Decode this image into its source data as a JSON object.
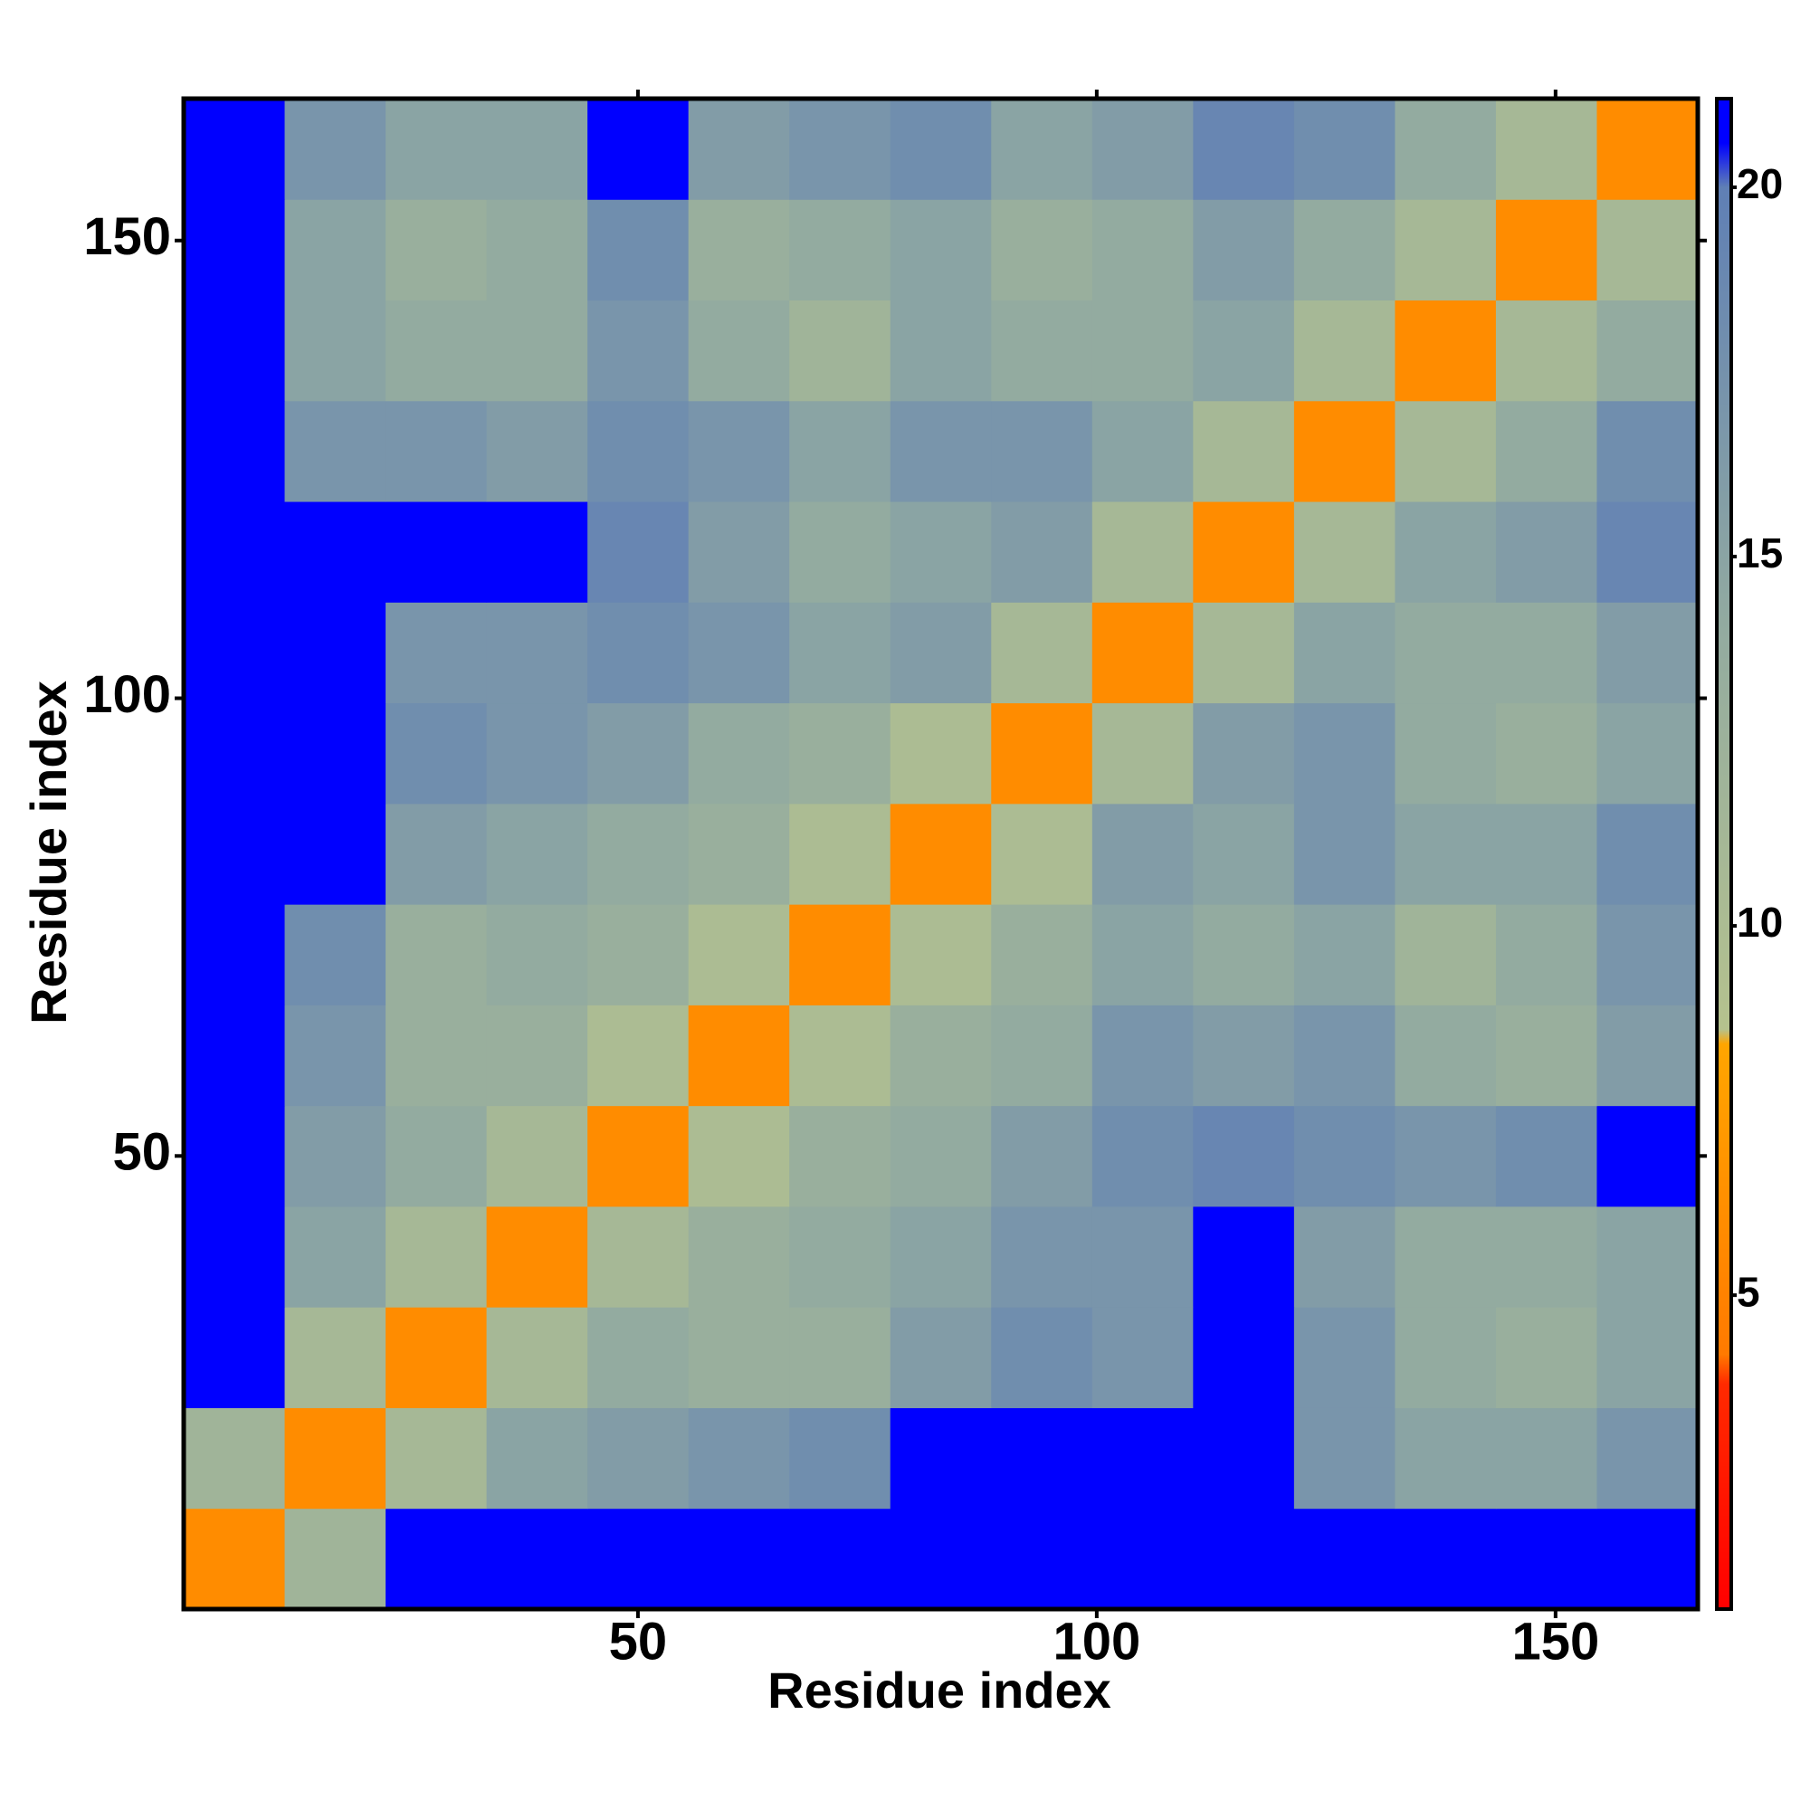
{
  "chart_data": {
    "type": "heatmap",
    "x_label": "Residue index",
    "y_label": "Residue index",
    "xbins": [
      0.5,
      11.5,
      22.5,
      33.5,
      44.5,
      55.5,
      66.5,
      77.5,
      88.5,
      99.5,
      110.5,
      121.5,
      132.5,
      143.5,
      154.5,
      165.5
    ],
    "ybins": [
      0.5,
      11.5,
      22.5,
      33.5,
      44.5,
      55.5,
      66.5,
      77.5,
      88.5,
      99.5,
      110.5,
      121.5,
      132.5,
      143.5,
      154.5,
      165.5
    ],
    "xlim": [
      0.5,
      165.5
    ],
    "ylim": [
      0.5,
      165.5
    ],
    "xticks": [
      50,
      100,
      150
    ],
    "yticks": [
      50,
      100,
      150
    ],
    "clim": [
      0.75,
      21.2
    ],
    "cticks": [
      5,
      10,
      15,
      20
    ],
    "colorscale": [
      [
        0.75,
        "#ff0000"
      ],
      [
        3.8,
        "#ff2a00"
      ],
      [
        4.2,
        "#ff7a00"
      ],
      [
        8.4,
        "#ffa500"
      ],
      [
        8.6,
        "#b5c28e"
      ],
      [
        14,
        "#93aba0"
      ],
      [
        20,
        "#5f7fb5"
      ],
      [
        20.6,
        "#0000ff"
      ],
      [
        21.2,
        "#0000ff"
      ]
    ],
    "z": [
      [
        6,
        12,
        21,
        21,
        21,
        21,
        21,
        21,
        21,
        21,
        21,
        21,
        21,
        21,
        21
      ],
      [
        12,
        6,
        11,
        15,
        16,
        17,
        18,
        21,
        21,
        21,
        21,
        17,
        15,
        15,
        17
      ],
      [
        21,
        11,
        6,
        11,
        14,
        13,
        13,
        16,
        18,
        17,
        21,
        17,
        14,
        13,
        15
      ],
      [
        21,
        15,
        11,
        6,
        11,
        13,
        14,
        15,
        17,
        17,
        21,
        16,
        14,
        14,
        15
      ],
      [
        21,
        16,
        14,
        11,
        6,
        10,
        13,
        14,
        16,
        18,
        19,
        18,
        17,
        18,
        21
      ],
      [
        21,
        17,
        13,
        13,
        10,
        6,
        10,
        13,
        14,
        17,
        16,
        17,
        14,
        13,
        16
      ],
      [
        21,
        18,
        13,
        14,
        13,
        10,
        6,
        10,
        13,
        15,
        14,
        15,
        12,
        14,
        17
      ],
      [
        21,
        21,
        16,
        15,
        14,
        13,
        10,
        6,
        10,
        16,
        15,
        17,
        15,
        15,
        18
      ],
      [
        21,
        21,
        18,
        17,
        16,
        14,
        13,
        10,
        6,
        11,
        16,
        17,
        14,
        13,
        15
      ],
      [
        21,
        21,
        17,
        17,
        18,
        17,
        15,
        16,
        11,
        6,
        11,
        15,
        14,
        14,
        16
      ],
      [
        21,
        21,
        21,
        21,
        19,
        16,
        14,
        15,
        16,
        11,
        6,
        11,
        15,
        16,
        19
      ],
      [
        21,
        17,
        17,
        16,
        18,
        17,
        15,
        17,
        17,
        15,
        11,
        6,
        11,
        14,
        18
      ],
      [
        21,
        15,
        14,
        14,
        17,
        14,
        12,
        15,
        14,
        14,
        15,
        11,
        6,
        11,
        14
      ],
      [
        21,
        15,
        13,
        14,
        18,
        13,
        14,
        15,
        13,
        14,
        16,
        14,
        11,
        6,
        11
      ],
      [
        21,
        17,
        15,
        15,
        21,
        16,
        17,
        18,
        15,
        16,
        19,
        18,
        14,
        11,
        6
      ]
    ]
  }
}
